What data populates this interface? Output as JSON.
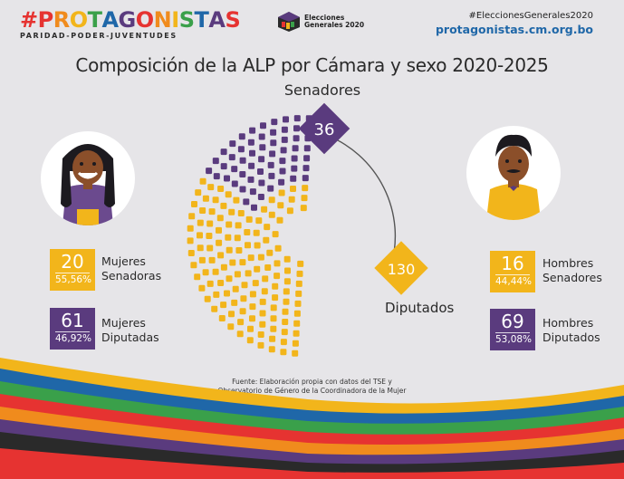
{
  "brand": {
    "name": "#PROTAGONISTAS",
    "letters": [
      "#",
      "P",
      "R",
      "O",
      "T",
      "A",
      "G",
      "O",
      "N",
      "I",
      "S",
      "T",
      "A",
      "S"
    ],
    "letter_colors": [
      "#e63331",
      "#e63331",
      "#f08b1d",
      "#f2b51b",
      "#3aa04a",
      "#1f67a8",
      "#5a3b7e",
      "#e63331",
      "#f08b1d",
      "#f2b51b",
      "#3aa04a",
      "#1f67a8",
      "#5a3b7e",
      "#e63331"
    ],
    "tagline": "PARIDAD-PODER-JUVENTUDES"
  },
  "elecciones": {
    "line1": "Elecciones",
    "line2": "Generales 2020"
  },
  "header_right": {
    "hashtag": "#EleccionesGenerales2020",
    "site": "protagonistas.cm.org.bo"
  },
  "title": "Composición de la ALP por Cámara y sexo 2020-2025",
  "senadores_label": "Senadores",
  "diputados_label": "Diputados",
  "senadores_total": "36",
  "diputados_total": "130",
  "women": {
    "senators": {
      "value": "20",
      "pct": "55,56%",
      "label1": "Mujeres",
      "label2": "Senadoras"
    },
    "deputies": {
      "value": "61",
      "pct": "46,92%",
      "label1": "Mujeres",
      "label2": "Diputadas"
    }
  },
  "men": {
    "senators": {
      "value": "16",
      "pct": "44,44%",
      "label1": "Hombres",
      "label2": "Senadores"
    },
    "deputies": {
      "value": "69",
      "pct": "53,08%",
      "label1": "Hombres",
      "label2": "Diputados"
    }
  },
  "source": {
    "line1": "Fuente: Elaboración propia con datos del TSE y",
    "line2": "Observatorio de Género de la Coordinadora de la Mujer"
  },
  "colors": {
    "women": "#f2b51b",
    "men": "#5a3b7e",
    "background": "#e6e5e8"
  }
}
